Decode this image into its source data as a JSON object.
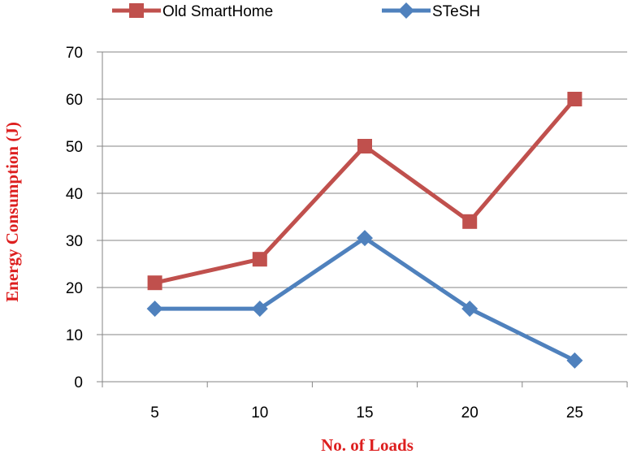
{
  "chart_data": {
    "type": "line",
    "title": "",
    "xlabel": "No. of Loads",
    "ylabel": "Energy Consumption (J)",
    "categories": [
      "5",
      "10",
      "15",
      "20",
      "25"
    ],
    "ylim": [
      0,
      70
    ],
    "yticks": [
      "0",
      "10",
      "20",
      "30",
      "40",
      "50",
      "60",
      "70"
    ],
    "grid": true,
    "legend_position": "top",
    "series": [
      {
        "name": "Old SmartHome",
        "values": [
          21,
          26,
          50,
          34,
          60
        ],
        "color": "#c0504d",
        "marker": "square"
      },
      {
        "name": "STeSH",
        "values": [
          15.5,
          15.5,
          30.5,
          15.5,
          4.5
        ],
        "color": "#4f81bd",
        "marker": "diamond"
      }
    ],
    "axis_title_color": "#dd1f1f"
  }
}
